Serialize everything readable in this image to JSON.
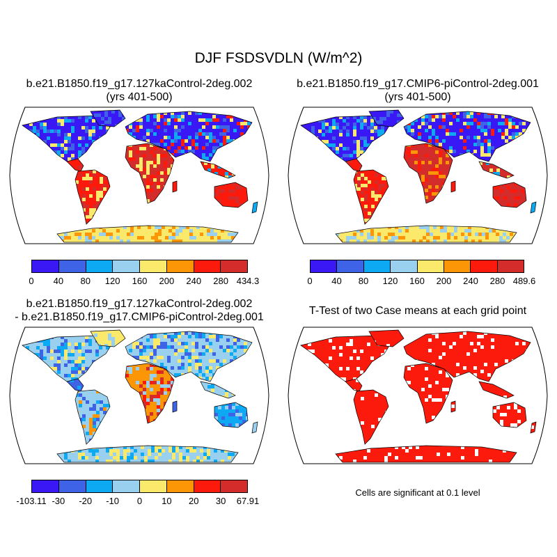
{
  "title": "DJF FSDSVDLN (W/m^2)",
  "colors": [
    "#3a18f5",
    "#3f63e6",
    "#0da9f2",
    "#9ad0ef",
    "#fbe96c",
    "#fd9606",
    "#fb1a0c",
    "#d42b2b"
  ],
  "panels": [
    {
      "title_line1": "b.e21.B1850.f19_g17.127kaControl-2deg.002",
      "title_line2": "(yrs 401-500)",
      "colorbar_labels": [
        "0",
        "40",
        "80",
        "120",
        "160",
        "200",
        "240",
        "280",
        "434.3"
      ]
    },
    {
      "title_line1": "b.e21.B1850.f19_g17.CMIP6-piControl-2deg.001",
      "title_line2": "(yrs 401-500)",
      "colorbar_labels": [
        "0",
        "40",
        "80",
        "120",
        "160",
        "200",
        "240",
        "280",
        "489.6"
      ]
    },
    {
      "title_line1": "b.e21.B1850.f19_g17.127kaControl-2deg.002",
      "title_line2": "- b.e21.B1850.f19_g17.CMIP6-piControl-2deg.001",
      "colorbar_labels": [
        "-103.11",
        "-30",
        "-20",
        "-10",
        "0",
        "10",
        "20",
        "30",
        "67.91"
      ]
    },
    {
      "title_line1": "T-Test of two Case means at each grid point",
      "note": "Cells are significant at 0.1 level"
    }
  ]
}
